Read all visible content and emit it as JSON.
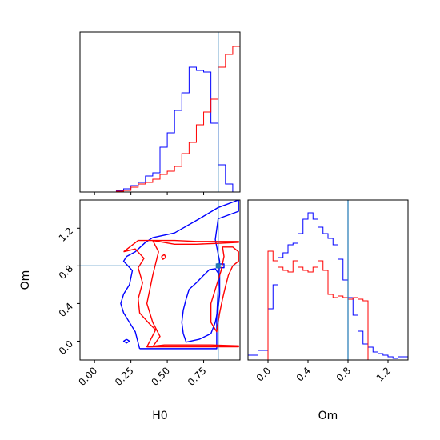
{
  "chart_data": [
    {
      "panel": "marginal-H0",
      "type": "histogram",
      "xlim": [
        -0.1,
        1.0
      ],
      "ylim": [
        0,
        1.0
      ],
      "truth": 0.85,
      "series": [
        {
          "color": "#0000ff",
          "bin_edges": [
            0.15,
            0.2,
            0.25,
            0.3,
            0.35,
            0.4,
            0.45,
            0.5,
            0.55,
            0.6,
            0.65,
            0.7,
            0.75,
            0.8,
            0.85,
            0.9,
            0.95
          ],
          "values": [
            0.01,
            0.02,
            0.04,
            0.06,
            0.1,
            0.12,
            0.28,
            0.37,
            0.51,
            0.62,
            0.78,
            0.76,
            0.75,
            0.43,
            0.17,
            0.05
          ]
        },
        {
          "color": "#ff0000",
          "bin_edges": [
            0.15,
            0.2,
            0.25,
            0.3,
            0.35,
            0.4,
            0.45,
            0.5,
            0.55,
            0.6,
            0.65,
            0.7,
            0.75,
            0.8,
            0.85,
            0.9,
            0.95,
            1.0
          ],
          "values": [
            0.005,
            0.01,
            0.03,
            0.05,
            0.06,
            0.08,
            0.11,
            0.13,
            0.16,
            0.24,
            0.31,
            0.42,
            0.5,
            0.58,
            0.78,
            0.86,
            0.91
          ]
        }
      ]
    },
    {
      "panel": "marginal-Om",
      "type": "histogram",
      "xlim": [
        -0.2,
        1.4
      ],
      "ylim": [
        0,
        1.0
      ],
      "truth": 0.8,
      "series": [
        {
          "color": "#0000ff",
          "bin_edges": [
            -0.2,
            -0.1,
            0.0,
            0.05,
            0.1,
            0.15,
            0.2,
            0.25,
            0.3,
            0.35,
            0.4,
            0.45,
            0.5,
            0.55,
            0.6,
            0.65,
            0.7,
            0.75,
            0.8,
            0.85,
            0.9,
            0.95,
            1.0,
            1.05,
            1.1,
            1.15,
            1.2,
            1.25,
            1.3,
            1.4
          ],
          "values": [
            0.03,
            0.06,
            0.32,
            0.47,
            0.64,
            0.67,
            0.72,
            0.73,
            0.79,
            0.88,
            0.92,
            0.88,
            0.83,
            0.79,
            0.76,
            0.72,
            0.63,
            0.5,
            0.39,
            0.28,
            0.18,
            0.1,
            0.08,
            0.05,
            0.04,
            0.03,
            0.02,
            0.01,
            0.02
          ]
        },
        {
          "color": "#ff0000",
          "bin_edges": [
            0.0,
            0.05,
            0.1,
            0.15,
            0.2,
            0.25,
            0.3,
            0.35,
            0.4,
            0.45,
            0.5,
            0.55,
            0.6,
            0.65,
            0.7,
            0.75,
            0.8,
            0.85,
            0.9,
            0.95,
            1.0
          ],
          "values": [
            0.68,
            0.62,
            0.58,
            0.56,
            0.55,
            0.62,
            0.58,
            0.56,
            0.55,
            0.58,
            0.62,
            0.56,
            0.41,
            0.39,
            0.4,
            0.39,
            0.38,
            0.39,
            0.38,
            0.37
          ]
        }
      ]
    },
    {
      "panel": "joint-H0-Om",
      "type": "contour",
      "xlim": [
        -0.1,
        1.0
      ],
      "ylim": [
        -0.2,
        1.5
      ],
      "truth": [
        0.85,
        0.8
      ],
      "contours": [
        {
          "color": "#0000ff",
          "points": [
            [
              0.63,
              -0.01
            ],
            [
              0.72,
              0.02
            ],
            [
              0.8,
              0.08
            ],
            [
              0.83,
              0.2
            ],
            [
              0.85,
              0.35
            ],
            [
              0.86,
              0.5
            ],
            [
              0.86,
              0.6
            ],
            [
              0.86,
              0.7
            ],
            [
              0.83,
              0.77
            ],
            [
              0.79,
              0.76
            ],
            [
              0.75,
              0.7
            ],
            [
              0.7,
              0.62
            ],
            [
              0.65,
              0.55
            ],
            [
              0.63,
              0.45
            ],
            [
              0.61,
              0.33
            ],
            [
              0.6,
              0.2
            ],
            [
              0.61,
              0.08
            ],
            [
              0.63,
              -0.01
            ]
          ]
        },
        {
          "color": "#0000ff",
          "points": [
            [
              0.31,
              -0.08
            ],
            [
              0.5,
              -0.08
            ],
            [
              0.7,
              -0.08
            ],
            [
              0.84,
              -0.08
            ],
            [
              0.84,
              0.25
            ],
            [
              0.85,
              0.55
            ],
            [
              0.86,
              0.85
            ],
            [
              0.83,
              1.08
            ],
            [
              0.85,
              1.3
            ],
            [
              0.99,
              1.38
            ],
            [
              0.99,
              1.5
            ],
            [
              0.85,
              1.42
            ],
            [
              0.72,
              1.3
            ],
            [
              0.55,
              1.15
            ],
            [
              0.4,
              1.1
            ],
            [
              0.35,
              1.05
            ],
            [
              0.28,
              0.95
            ],
            [
              0.22,
              0.9
            ],
            [
              0.2,
              0.85
            ],
            [
              0.26,
              0.75
            ],
            [
              0.24,
              0.6
            ],
            [
              0.2,
              0.5
            ],
            [
              0.18,
              0.4
            ],
            [
              0.2,
              0.3
            ],
            [
              0.24,
              0.2
            ],
            [
              0.28,
              0.1
            ],
            [
              0.31,
              -0.08
            ]
          ]
        },
        {
          "color": "#0000ff",
          "points": [
            [
              0.84,
              0.82
            ],
            [
              0.89,
              0.82
            ],
            [
              0.89,
              0.78
            ],
            [
              0.84,
              0.78
            ],
            [
              0.84,
              0.82
            ]
          ]
        },
        {
          "color": "#0000ff",
          "points": [
            [
              0.22,
              0.02
            ],
            [
              0.24,
              0.0
            ],
            [
              0.22,
              -0.02
            ],
            [
              0.2,
              0.0
            ],
            [
              0.22,
              0.02
            ]
          ]
        },
        {
          "color": "#ff0000",
          "points": [
            [
              0.36,
              -0.06
            ],
            [
              0.5,
              -0.06
            ],
            [
              0.65,
              -0.06
            ],
            [
              0.8,
              -0.06
            ],
            [
              0.99,
              -0.06
            ],
            [
              0.99,
              -0.05
            ],
            [
              0.8,
              -0.04
            ],
            [
              0.65,
              -0.04
            ],
            [
              0.48,
              -0.04
            ],
            [
              0.36,
              -0.06
            ]
          ]
        },
        {
          "color": "#ff0000",
          "points": [
            [
              0.4,
              1.07
            ],
            [
              0.55,
              1.07
            ],
            [
              0.7,
              1.06
            ],
            [
              0.85,
              1.06
            ],
            [
              0.99,
              1.06
            ],
            [
              0.99,
              1.05
            ],
            [
              0.85,
              1.04
            ],
            [
              0.7,
              1.03
            ],
            [
              0.55,
              1.03
            ],
            [
              0.4,
              1.07
            ]
          ]
        },
        {
          "color": "#ff0000",
          "points": [
            [
              0.2,
              0.95
            ],
            [
              0.28,
              0.98
            ],
            [
              0.34,
              0.88
            ],
            [
              0.3,
              0.78
            ],
            [
              0.33,
              0.62
            ],
            [
              0.3,
              0.45
            ],
            [
              0.31,
              0.3
            ],
            [
              0.38,
              0.18
            ],
            [
              0.42,
              0.12
            ],
            [
              0.4,
              0.06
            ],
            [
              0.36,
              -0.06
            ],
            [
              0.4,
              -0.06
            ],
            [
              0.45,
              0.05
            ],
            [
              0.4,
              0.2
            ],
            [
              0.36,
              0.4
            ],
            [
              0.4,
              0.7
            ],
            [
              0.44,
              0.95
            ],
            [
              0.4,
              1.07
            ],
            [
              0.3,
              1.07
            ],
            [
              0.2,
              0.95
            ]
          ]
        },
        {
          "color": "#ff0000",
          "points": [
            [
              0.84,
              0.6
            ],
            [
              0.87,
              0.75
            ],
            [
              0.89,
              0.9
            ],
            [
              0.88,
              1.0
            ],
            [
              0.95,
              1.0
            ],
            [
              0.99,
              0.95
            ],
            [
              0.99,
              0.85
            ],
            [
              0.95,
              0.8
            ],
            [
              0.92,
              0.7
            ],
            [
              0.9,
              0.58
            ],
            [
              0.88,
              0.45
            ],
            [
              0.86,
              0.3
            ],
            [
              0.84,
              0.1
            ],
            [
              0.8,
              0.2
            ],
            [
              0.8,
              0.4
            ],
            [
              0.84,
              0.6
            ]
          ]
        },
        {
          "color": "#ff0000",
          "points": [
            [
              0.46,
              0.9
            ],
            [
              0.48,
              0.92
            ],
            [
              0.49,
              0.89
            ],
            [
              0.47,
              0.87
            ],
            [
              0.46,
              0.9
            ]
          ]
        }
      ]
    }
  ],
  "axes": {
    "h0": {
      "label": "H0",
      "ticks": [
        {
          "value": 0.0,
          "label": "0.00"
        },
        {
          "value": 0.25,
          "label": "0.25"
        },
        {
          "value": 0.5,
          "label": "0.50"
        },
        {
          "value": 0.75,
          "label": "0.75"
        }
      ]
    },
    "om": {
      "label": "Om",
      "ticks": [
        {
          "value": 0.0,
          "label": "0.0"
        },
        {
          "value": 0.4,
          "label": "0.4"
        },
        {
          "value": 0.8,
          "label": "0.8"
        },
        {
          "value": 1.2,
          "label": "1.2"
        }
      ]
    }
  },
  "colors": {
    "truth_line": "#1f77b4",
    "series_a": "#0000ff",
    "series_b": "#ff0000"
  }
}
